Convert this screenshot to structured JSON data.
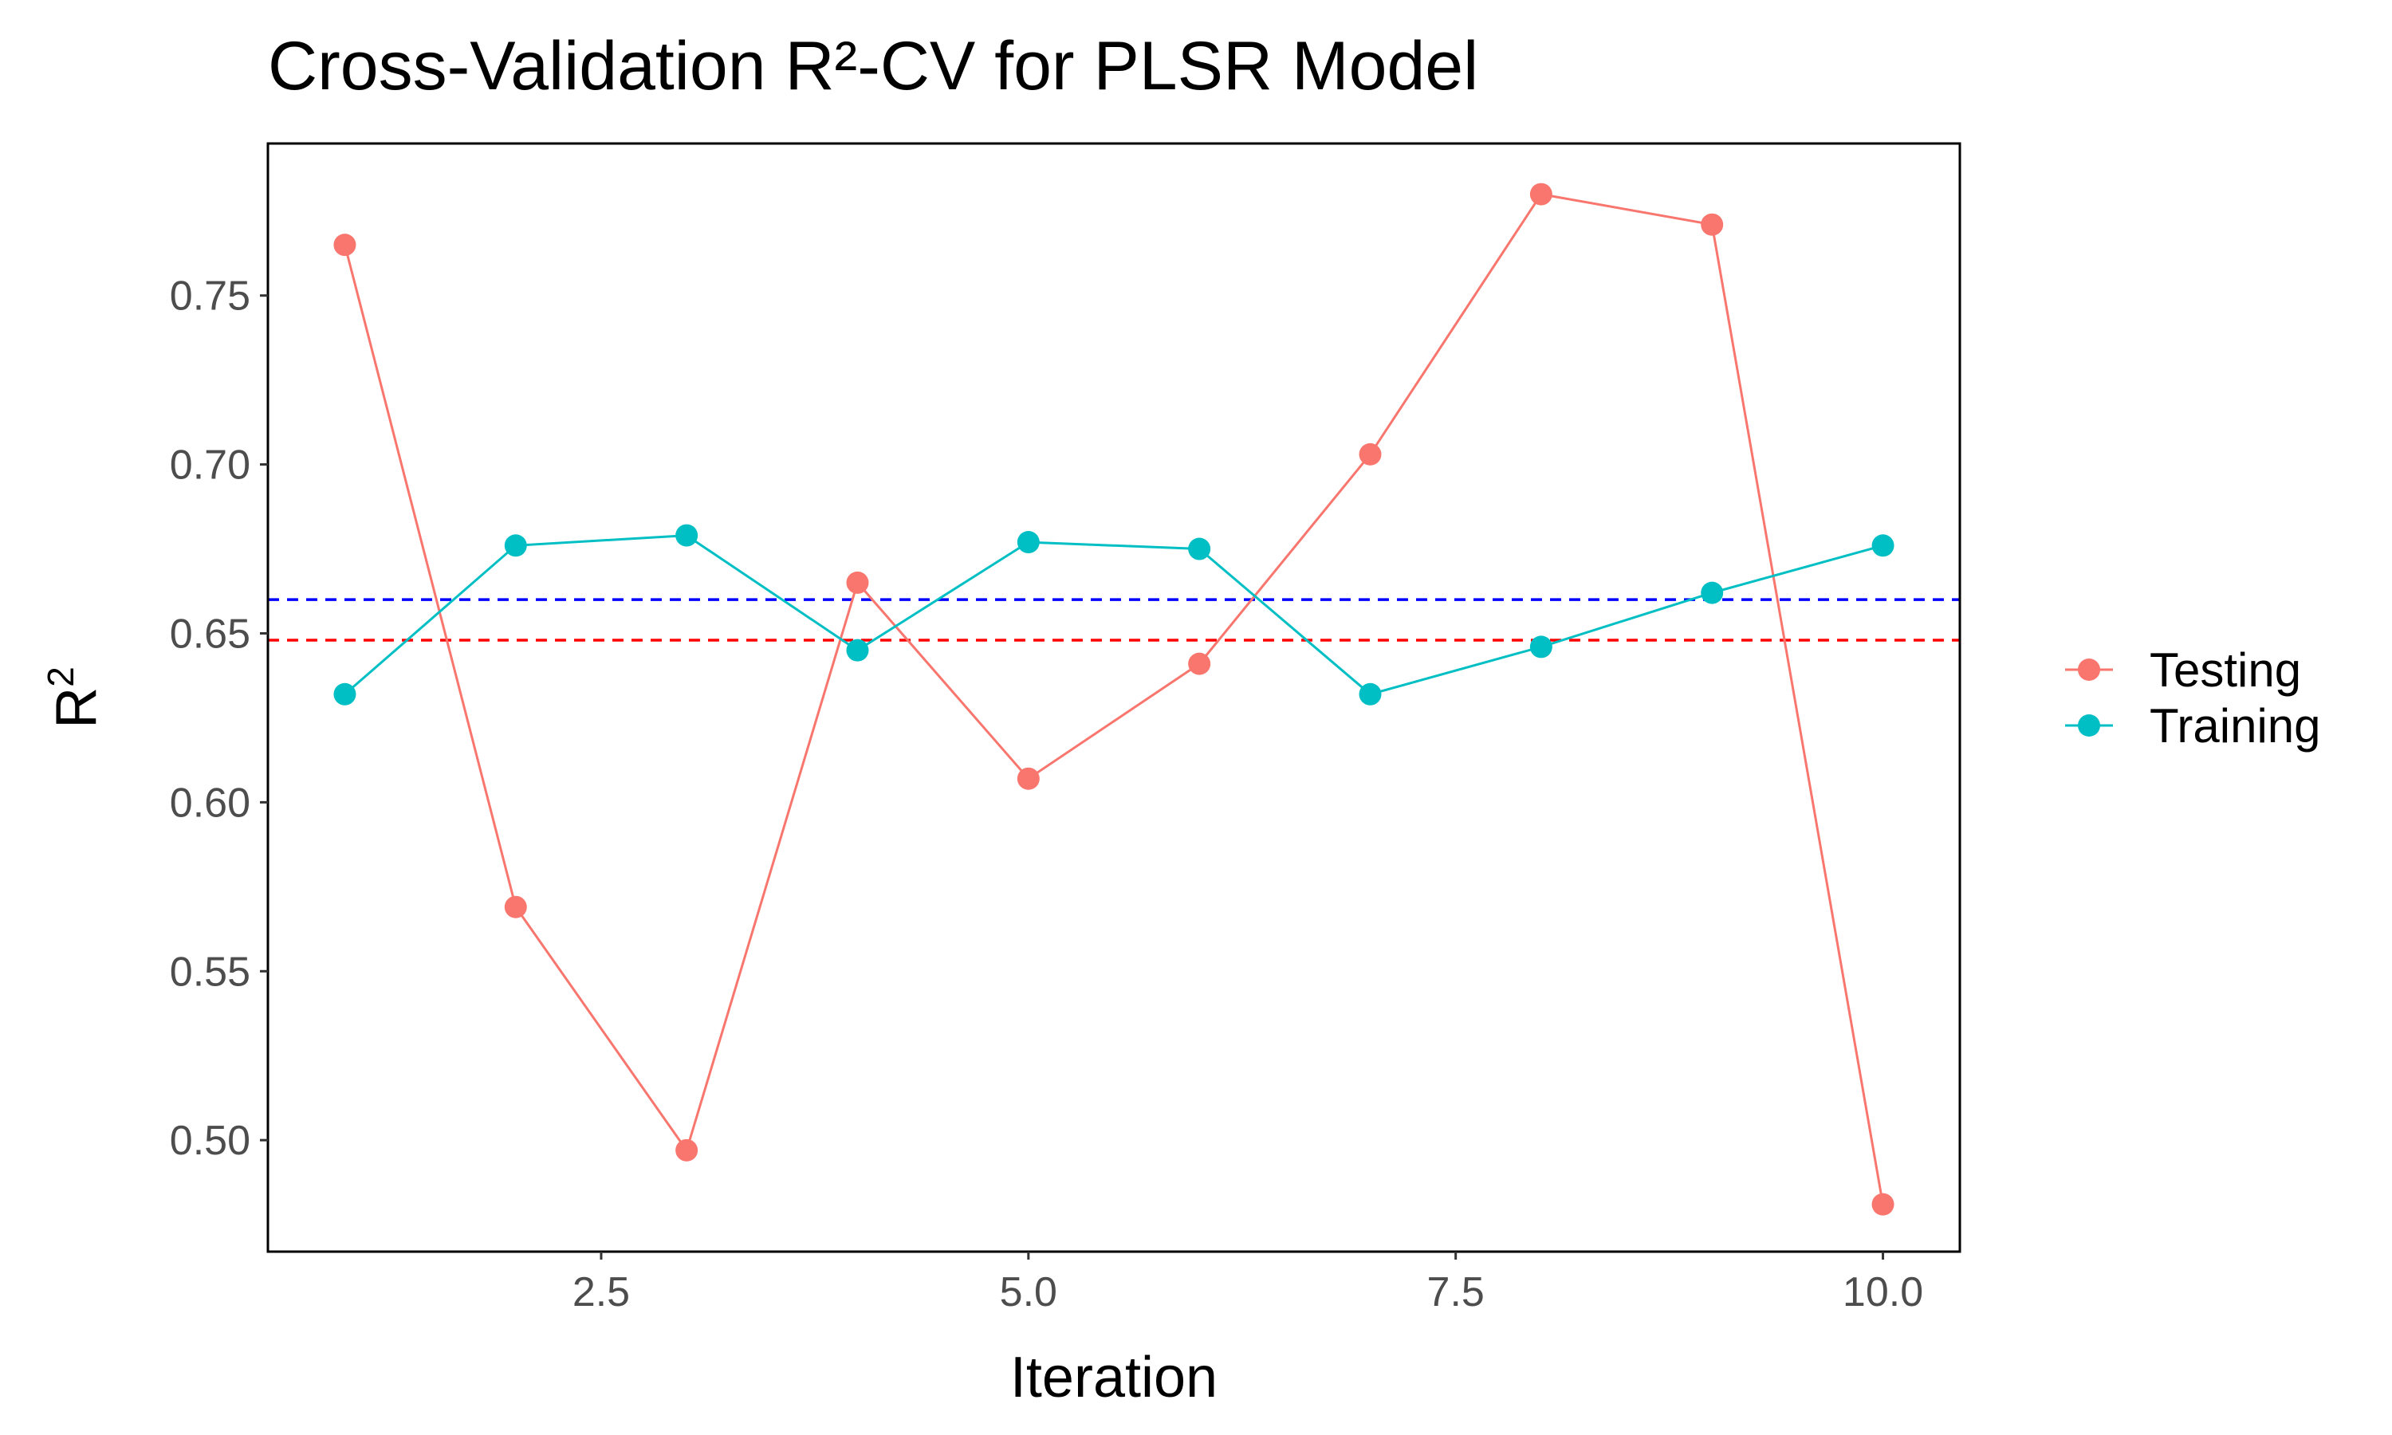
{
  "chart_data": {
    "type": "line",
    "title": "Cross-Validation R²-CV for PLSR Model",
    "xlabel": "Iteration",
    "ylabel": "R",
    "ylabel_superscript": "2",
    "xlim": [
      0.55,
      10.45
    ],
    "ylim": [
      0.467,
      0.795
    ],
    "x_ticks": [
      2.5,
      5.0,
      7.5,
      10.0
    ],
    "x_tick_labels": [
      "2.5",
      "5.0",
      "7.5",
      "10.0"
    ],
    "y_ticks": [
      0.5,
      0.55,
      0.6,
      0.65,
      0.7,
      0.75
    ],
    "y_tick_labels": [
      "0.50",
      "0.55",
      "0.60",
      "0.65",
      "0.70",
      "0.75"
    ],
    "grid": false,
    "legend_position": "right",
    "x": [
      1,
      2,
      3,
      4,
      5,
      6,
      7,
      8,
      9,
      10
    ],
    "series": [
      {
        "name": "Testing",
        "color": "#F8766D",
        "values": [
          0.765,
          0.569,
          0.497,
          0.665,
          0.607,
          0.641,
          0.703,
          0.78,
          0.771,
          0.481
        ]
      },
      {
        "name": "Training",
        "color": "#00BFC4",
        "values": [
          0.632,
          0.676,
          0.679,
          0.645,
          0.677,
          0.675,
          0.632,
          0.646,
          0.662,
          0.676
        ]
      }
    ],
    "reference_lines": [
      {
        "y": 0.66,
        "color": "#0000FF",
        "style": "dashed"
      },
      {
        "y": 0.648,
        "color": "#FF0000",
        "style": "dashed"
      }
    ]
  }
}
